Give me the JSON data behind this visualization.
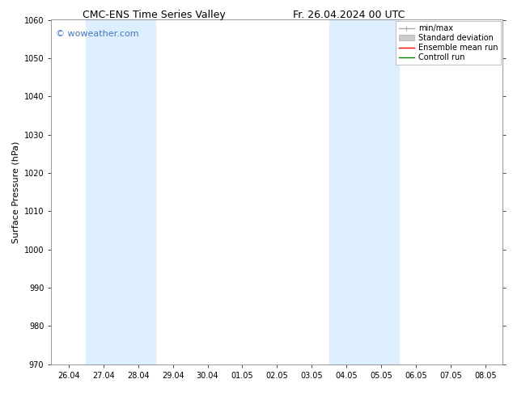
{
  "title_left": "CMC-ENS Time Series Valley",
  "title_right": "Fr. 26.04.2024 00 UTC",
  "ylabel": "Surface Pressure (hPa)",
  "ylim": [
    970,
    1060
  ],
  "yticks": [
    970,
    980,
    990,
    1000,
    1010,
    1020,
    1030,
    1040,
    1050,
    1060
  ],
  "xtick_labels": [
    "26.04",
    "27.04",
    "28.04",
    "29.04",
    "30.04",
    "01.05",
    "02.05",
    "03.05",
    "04.05",
    "05.05",
    "06.05",
    "07.05",
    "08.05"
  ],
  "num_xticks": 13,
  "shaded_regions": [
    {
      "xstart": 1,
      "xend": 3
    },
    {
      "xstart": 8,
      "xend": 10
    }
  ],
  "shaded_color": "#ddeeff",
  "watermark": "© woweather.com",
  "watermark_color": "#4477cc",
  "legend_entries": [
    {
      "label": "min/max",
      "color": "#aaaaaa",
      "lw": 1.0
    },
    {
      "label": "Standard deviation",
      "color": "#cccccc",
      "lw": 5
    },
    {
      "label": "Ensemble mean run",
      "color": "red",
      "lw": 1.0
    },
    {
      "label": "Controll run",
      "color": "green",
      "lw": 1.0
    }
  ],
  "bg_color": "#ffffff",
  "title_fontsize": 9,
  "axis_label_fontsize": 8,
  "tick_fontsize": 7,
  "legend_fontsize": 7,
  "watermark_fontsize": 8
}
